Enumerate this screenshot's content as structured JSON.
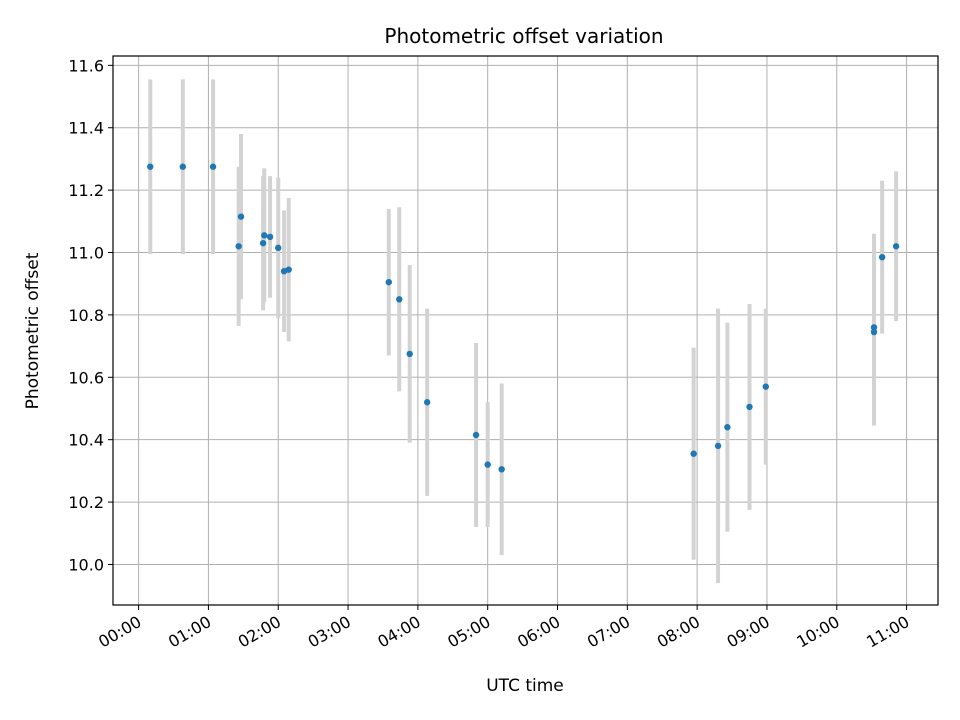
{
  "chart_data": {
    "type": "scatter",
    "title": "Photometric offset variation",
    "xlabel": "UTC time",
    "ylabel": "Photometric offset",
    "x_ticks": [
      "00:00",
      "01:00",
      "02:00",
      "03:00",
      "04:00",
      "05:00",
      "06:00",
      "07:00",
      "08:00",
      "09:00",
      "10:00",
      "11:00"
    ],
    "y_ticks": [
      "10.0",
      "10.2",
      "10.4",
      "10.6",
      "10.8",
      "11.0",
      "11.2",
      "11.4",
      "11.6"
    ],
    "xlim": [
      "23:38",
      "11:27"
    ],
    "ylim": [
      9.87,
      11.63
    ],
    "grid": true,
    "marker_color": "#1f77b4",
    "errorbar_color": "#d3d3d3",
    "points": [
      {
        "x": "00:10",
        "y": 11.275,
        "err": 0.28
      },
      {
        "x": "00:38",
        "y": 11.275,
        "err": 0.28
      },
      {
        "x": "01:04",
        "y": 11.275,
        "err": 0.28
      },
      {
        "x": "01:26",
        "y": 11.02,
        "err": 0.255
      },
      {
        "x": "01:28",
        "y": 11.115,
        "err": 0.265
      },
      {
        "x": "01:47",
        "y": 11.03,
        "err": 0.215
      },
      {
        "x": "01:48",
        "y": 11.055,
        "err": 0.215
      },
      {
        "x": "01:53",
        "y": 11.05,
        "err": 0.195
      },
      {
        "x": "02:00",
        "y": 11.015,
        "err": 0.225
      },
      {
        "x": "02:05",
        "y": 10.94,
        "err": 0.195
      },
      {
        "x": "02:09",
        "y": 10.945,
        "err": 0.23
      },
      {
        "x": "03:35",
        "y": 10.905,
        "err": 0.235
      },
      {
        "x": "03:44",
        "y": 10.85,
        "err": 0.295
      },
      {
        "x": "03:53",
        "y": 10.675,
        "err": 0.285
      },
      {
        "x": "04:08",
        "y": 10.52,
        "err": 0.3
      },
      {
        "x": "04:50",
        "y": 10.415,
        "err": 0.295
      },
      {
        "x": "05:00",
        "y": 10.32,
        "err": 0.2
      },
      {
        "x": "05:12",
        "y": 10.305,
        "err": 0.275
      },
      {
        "x": "07:57",
        "y": 10.355,
        "err": 0.34
      },
      {
        "x": "08:18",
        "y": 10.38,
        "err": 0.44
      },
      {
        "x": "08:26",
        "y": 10.44,
        "err": 0.335
      },
      {
        "x": "08:45",
        "y": 10.505,
        "err": 0.33
      },
      {
        "x": "08:59",
        "y": 10.57,
        "err": 0.25
      },
      {
        "x": "10:32",
        "y": 10.76,
        "err": 0.3
      },
      {
        "x": "10:32",
        "y": 10.745,
        "err": 0.3
      },
      {
        "x": "10:39",
        "y": 10.985,
        "err": 0.245
      },
      {
        "x": "10:51",
        "y": 11.02,
        "err": 0.24
      }
    ]
  }
}
